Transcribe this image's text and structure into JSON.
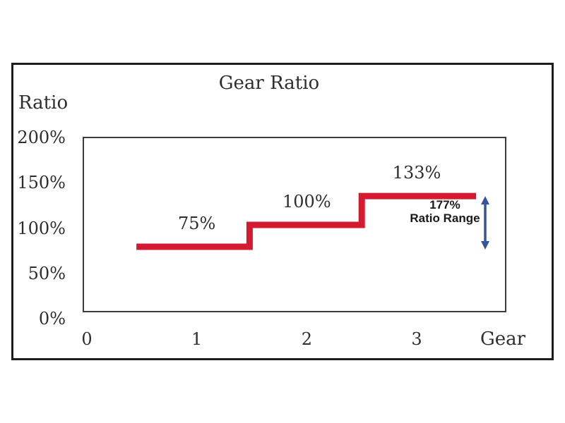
{
  "chart_data": {
    "type": "line",
    "line_style": "step",
    "title": "Gear Ratio",
    "ylabel": "Ratio",
    "xlabel": "Gear",
    "x_ticks": [
      0,
      1,
      2,
      3
    ],
    "y_ticks": [
      200,
      150,
      100,
      50,
      0
    ],
    "y_tick_suffix": "%",
    "xlim": [
      0,
      3.8
    ],
    "ylim": [
      0,
      200
    ],
    "grid": false,
    "legend": "none",
    "series": [
      {
        "name": "gear-ratio",
        "color": "#d31a31",
        "steps": [
          {
            "gear": 1,
            "ratio_pct": 75,
            "label": "75%",
            "x_start": 0.45,
            "x_end": 1.48
          },
          {
            "gear": 2,
            "ratio_pct": 100,
            "label": "100%",
            "x_start": 1.48,
            "x_end": 2.5
          },
          {
            "gear": 3,
            "ratio_pct": 133,
            "label": "133%",
            "x_start": 2.5,
            "x_end": 3.54
          }
        ]
      }
    ],
    "annotations": [
      {
        "name": "ratio-range",
        "line1": "177%",
        "line2": "Ratio Range",
        "arrow_color": "#35549d",
        "arrow_from_pct": 133,
        "arrow_to_pct": 75
      }
    ]
  },
  "colors": {
    "line": "#d31a31",
    "arrow": "#35549d",
    "text": "#2e2e2e",
    "outer_frame": "#1c1c1c",
    "plot_border": "#3c3c3c"
  }
}
